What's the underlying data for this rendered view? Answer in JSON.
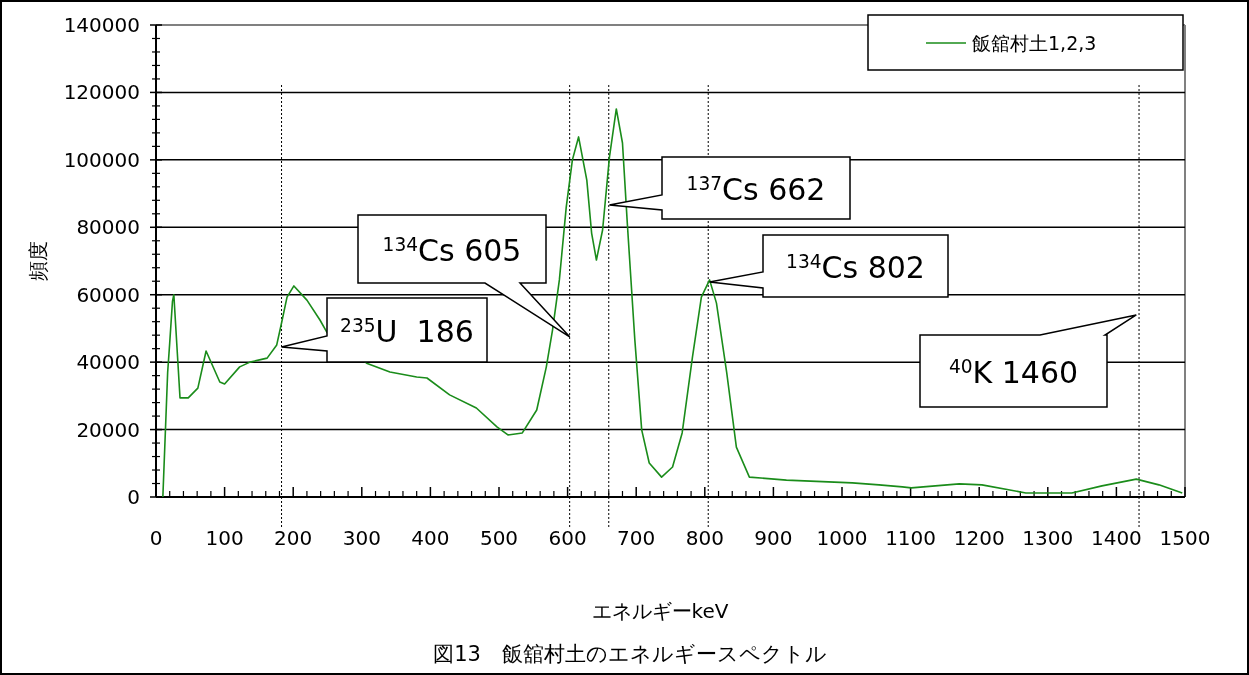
{
  "chart_data": {
    "type": "line",
    "title": "図13　飯舘村土のエネルギースペクトル",
    "xlabel": "エネルギーkeV",
    "ylabel": "頻度",
    "series": [
      {
        "name": "飯舘村土1,2,3",
        "color": "#1a8c1a",
        "x": [
          10,
          17,
          20,
          24,
          26,
          35,
          47,
          61,
          73,
          93,
          100,
          122,
          137,
          162,
          176,
          183,
          191,
          201,
          220,
          239,
          249,
          307,
          341,
          380,
          395,
          428,
          467,
          497,
          513,
          534,
          555,
          569,
          578,
          588,
          598,
          607,
          616,
          628,
          635,
          642,
          651,
          661,
          671,
          680,
          687,
          698,
          708,
          719,
          737,
          753,
          767,
          782,
          795,
          807,
          817,
          832,
          846,
          865,
          919,
          1015,
          1054,
          1088,
          1101,
          1171,
          1204,
          1268,
          1335,
          1379,
          1429,
          1462,
          1496
        ],
        "values": [
          0,
          37000,
          45700,
          58000,
          60000,
          29400,
          29400,
          32300,
          43300,
          34100,
          33500,
          38600,
          40000,
          41200,
          45100,
          51600,
          59300,
          62600,
          58400,
          52500,
          48900,
          39700,
          37100,
          35600,
          35300,
          30300,
          26400,
          20800,
          18400,
          19000,
          25800,
          38600,
          49500,
          64400,
          86000,
          100000,
          106800,
          94000,
          78300,
          70300,
          79200,
          100800,
          115100,
          105000,
          81300,
          46600,
          19900,
          10100,
          5900,
          8900,
          19000,
          41500,
          59300,
          64400,
          57500,
          36800,
          14800,
          5900,
          5000,
          4200,
          3600,
          3000,
          2700,
          3900,
          3600,
          1200,
          1200,
          3300,
          5300,
          3600,
          1200
        ]
      }
    ],
    "xlim": [
      0,
      1500
    ],
    "xticks": [
      0,
      100,
      200,
      300,
      400,
      500,
      600,
      700,
      800,
      900,
      1000,
      1100,
      1200,
      1300,
      1400,
      1500
    ],
    "ylim": [
      0,
      140000
    ],
    "yticks": [
      0,
      20000,
      40000,
      60000,
      80000,
      100000,
      120000,
      140000
    ],
    "grid": "y",
    "legend": "top right",
    "marker": "none",
    "line_style": "solid",
    "ref_lines": [
      {
        "axis": "x",
        "value": 183,
        "line_style": "dotted",
        "color": "#000000"
      },
      {
        "axis": "x",
        "value": 603,
        "line_style": "dotted",
        "color": "#000000"
      },
      {
        "axis": "x",
        "value": 660,
        "line_style": "dotted",
        "color": "#000000"
      },
      {
        "axis": "x",
        "value": 805,
        "line_style": "dotted",
        "color": "#000000"
      },
      {
        "axis": "x",
        "value": 1433,
        "line_style": "dotted",
        "color": "#000000"
      }
    ],
    "annotations": [
      {
        "text": "$^{235}$U  186",
        "x": 183,
        "y": 44500
      },
      {
        "text": "$^{134}$Cs 605",
        "x": 603,
        "y": 47500
      },
      {
        "text": "$^{137}$Cs 662",
        "x": 661,
        "y": 86600
      },
      {
        "text": "$^{134}$Cs 802",
        "x": 807,
        "y": 63800
      },
      {
        "text": "$^{40}$K 1460",
        "x": 1429,
        "y": 54000
      }
    ]
  }
}
